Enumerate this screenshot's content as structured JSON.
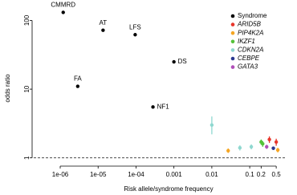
{
  "chart_data": {
    "type": "scatter",
    "x_label": "Risk allele/syndrome frequency",
    "y_label": "odds ratio",
    "x_log": true,
    "y_log": true,
    "xlim": [
      2e-07,
      0.85
    ],
    "ylim": [
      0.8,
      160
    ],
    "xticks": [
      {
        "value": 1e-06,
        "label": "1e-06"
      },
      {
        "value": 1e-05,
        "label": "1e-05"
      },
      {
        "value": 0.0001,
        "label": "1e-04"
      },
      0.001,
      0.01,
      0.1,
      0.2,
      0.5
    ],
    "yticks": [
      1,
      10,
      100
    ],
    "reference_line": 1,
    "legend": "top-right",
    "series": [
      {
        "name": "Syndrome",
        "color": "#000000",
        "italic": false,
        "x": [
          1.2e-06,
          1.35e-05,
          9.5e-05,
          0.001,
          2.9e-06,
          0.00028
        ],
        "values": [
          131,
          72,
          62,
          25,
          11,
          5.5
        ],
        "labels": [
          "CMMRD",
          "AT",
          "LFS",
          "DS",
          "FA",
          "NF1"
        ]
      },
      {
        "name": "ARID5B",
        "color": "#e8372c",
        "italic": true,
        "x": [
          0.33,
          0.5
        ],
        "values": [
          1.85,
          1.7
        ],
        "lower": [
          1.65,
          1.5
        ],
        "upper": [
          2.05,
          1.9
        ]
      },
      {
        "name": "PIP4K2A",
        "color": "#f5a623",
        "italic": true,
        "x": [
          0.027,
          0.55
        ],
        "values": [
          1.27,
          1.3
        ],
        "lower": [
          1.18,
          1.2
        ],
        "upper": [
          1.37,
          1.4
        ]
      },
      {
        "name": "IKZF1",
        "color": "#55c23a",
        "italic": true,
        "x": [
          0.2,
          0.22
        ],
        "values": [
          1.7,
          1.6
        ],
        "lower": [
          1.55,
          1.45
        ],
        "upper": [
          1.85,
          1.75
        ]
      },
      {
        "name": "CDKN2A",
        "color": "#8fd8d0",
        "italic": true,
        "x": [
          0.01,
          0.055,
          0.11
        ],
        "values": [
          3.0,
          1.4,
          1.45
        ],
        "lower": [
          2.2,
          1.28,
          1.33
        ],
        "upper": [
          4.0,
          1.52,
          1.57
        ]
      },
      {
        "name": "CEBPE",
        "color": "#2b3990",
        "italic": true,
        "x": [
          0.42
        ],
        "values": [
          1.38
        ],
        "lower": [
          1.3
        ],
        "upper": [
          1.46
        ]
      },
      {
        "name": "GATA3",
        "color": "#b04fb8",
        "italic": true,
        "x": [
          0.28
        ],
        "values": [
          1.45
        ],
        "lower": [
          1.35
        ],
        "upper": [
          1.55
        ]
      }
    ]
  }
}
